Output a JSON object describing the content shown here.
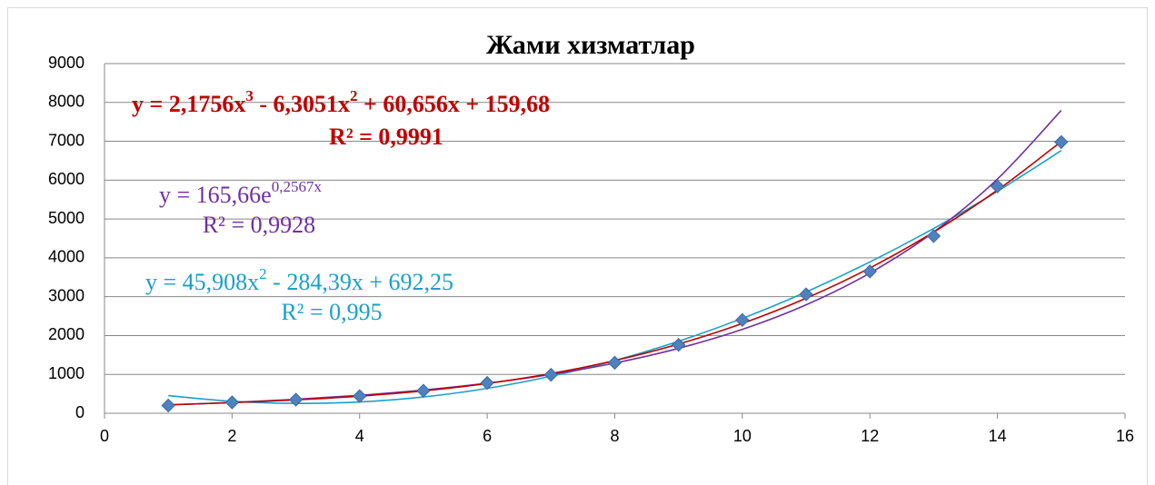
{
  "chart_data": {
    "type": "scatter",
    "title": "Жами хизматлар",
    "x": [
      1,
      2,
      3,
      4,
      5,
      6,
      7,
      8,
      9,
      10,
      11,
      12,
      13,
      14,
      15
    ],
    "series": [
      {
        "color": "#4f81bd",
        "values": [
          200,
          280,
          350,
          440,
          580,
          780,
          990,
          1300,
          1760,
          2400,
          3060,
          3650,
          4560,
          5840,
          6980
        ]
      }
    ],
    "trendlines": [
      {
        "color": "#c00000",
        "equation": [
          "y = 2,1756x",
          "3",
          " - 6,3051x",
          "2",
          " + 60,656x + 159,68"
        ],
        "r2": "R² = 0,9991",
        "values": [
          216.2,
          273.2,
          343.6,
          440.7,
          577.3,
          766.6,
          1021.6,
          1355.3,
          1780.9,
          2311.3,
          2959.7,
          3739.0,
          4662.4,
          5743.0,
          6993.6
        ]
      },
      {
        "color": "#7030a0",
        "equation": [
          "y = 165,66e",
          "0,2567x"
        ],
        "r2": "R² = 0,9928",
        "values": [
          214.1,
          276.8,
          357.9,
          462.6,
          598.0,
          773.1,
          999.4,
          1291.9,
          1670.1,
          2158.9,
          2790.9,
          3607.8,
          4663.8,
          6029.0,
          7793.7
        ]
      },
      {
        "color": "#1aa0c8",
        "equation": [
          "y = 45,908x",
          "2",
          " - 284,39x + 692,25"
        ],
        "r2": "R² = 0,995",
        "values": [
          453.8,
          307.3,
          252.6,
          289.8,
          418.8,
          639.7,
          952.4,
          1356.9,
          1853.3,
          2441.4,
          3121.4,
          3893.2,
          4756.8,
          5712.2,
          6759.5
        ]
      }
    ],
    "xlim": [
      0,
      16
    ],
    "xticks": [
      0,
      2,
      4,
      6,
      8,
      10,
      12,
      14,
      16
    ],
    "ylim": [
      0,
      9000
    ],
    "yticks": [
      0,
      1000,
      2000,
      3000,
      4000,
      5000,
      6000,
      7000,
      8000,
      9000
    ],
    "grid": true
  }
}
